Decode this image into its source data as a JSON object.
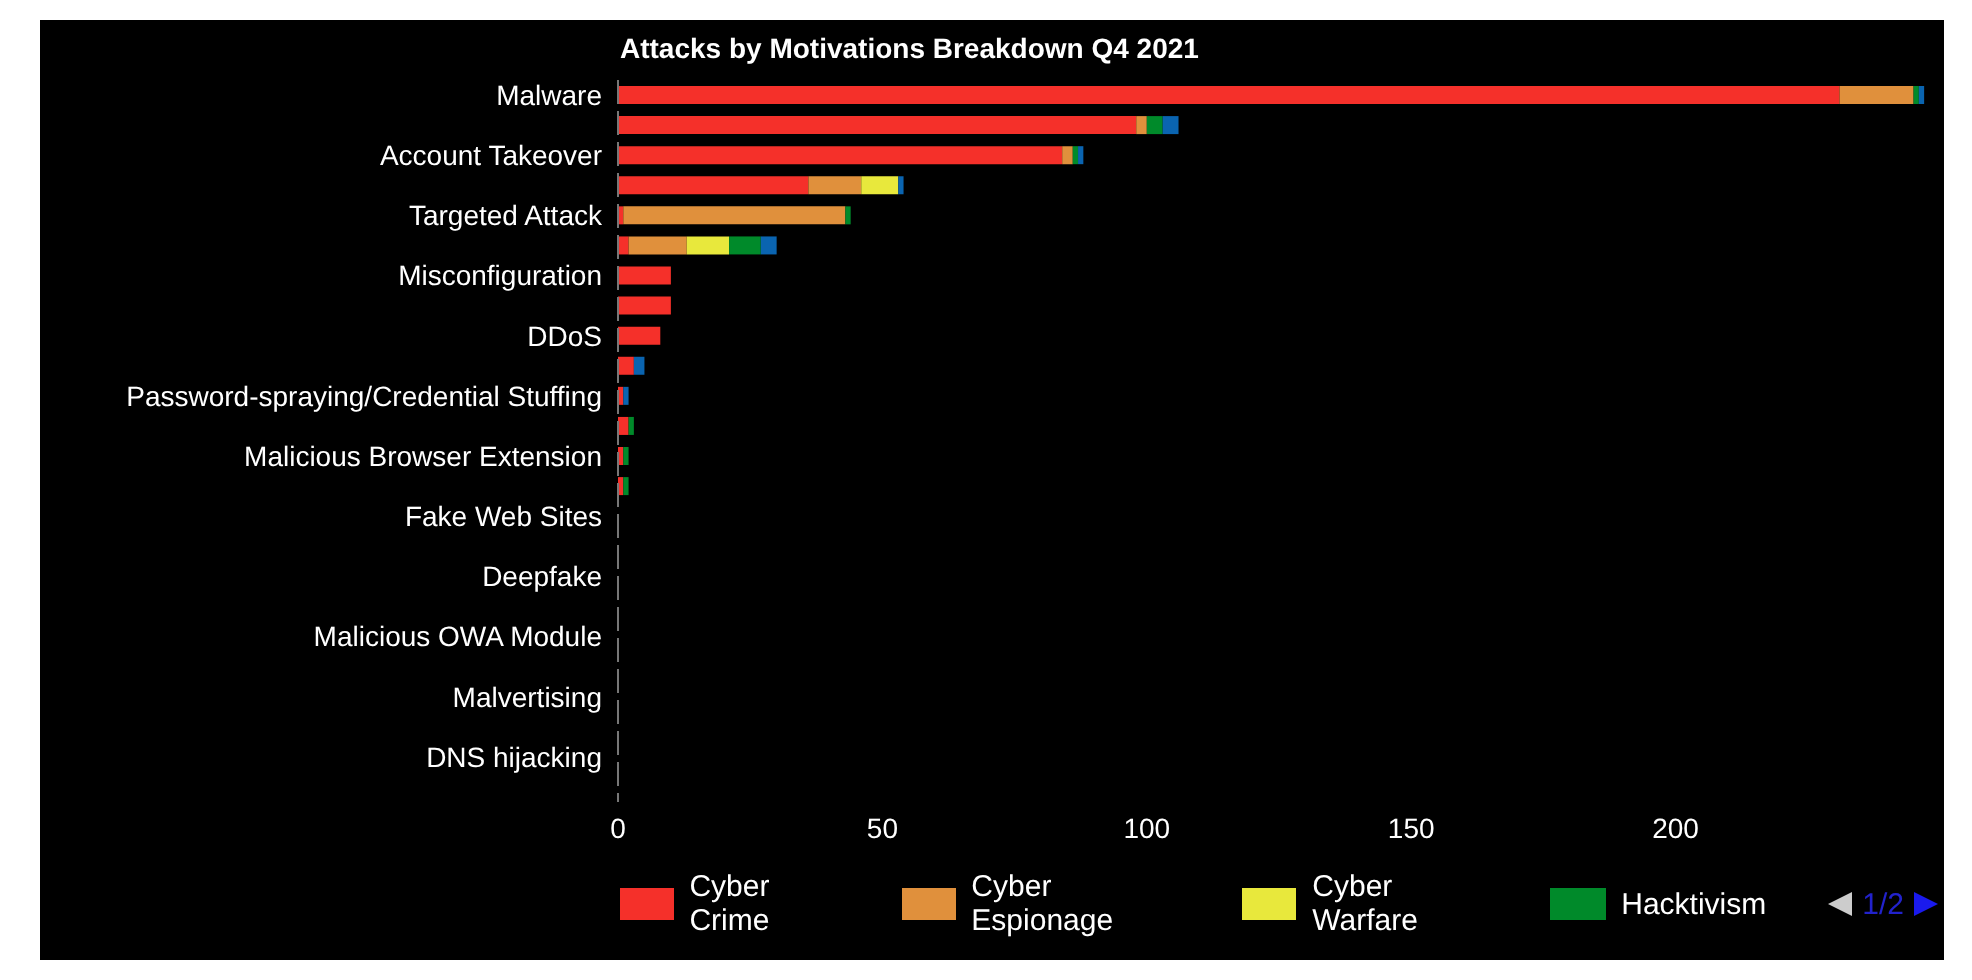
{
  "chart_data": {
    "type": "bar",
    "orientation": "horizontal",
    "stacked": true,
    "title": "Attacks by Motivations Breakdown Q4 2021",
    "categories": [
      "Malware",
      null,
      "Account Takeover",
      null,
      "Targeted Attack",
      null,
      "Misconfiguration",
      null,
      "DDoS",
      null,
      "Password-spraying/Credential Stuffing",
      null,
      "Malicious Browser Extension",
      null,
      "Fake Web Sites",
      null,
      "Deepfake",
      null,
      "Malicious OWA Module",
      null,
      "Malvertising",
      null,
      "DNS hijacking",
      null
    ],
    "series": [
      {
        "name": "Cyber Crime",
        "color": "#f5302a",
        "values": [
          231,
          98,
          84,
          36,
          1,
          2,
          10,
          10,
          8,
          3,
          1,
          2,
          1,
          1,
          0,
          0,
          0,
          0,
          0,
          0,
          0,
          0,
          0,
          0
        ]
      },
      {
        "name": "Cyber Espionage",
        "color": "#e0903c",
        "values": [
          14,
          2,
          2,
          10,
          42,
          11,
          0,
          0,
          0,
          0,
          0,
          0,
          0,
          0,
          0,
          0,
          0,
          0,
          0,
          0,
          0,
          0,
          0,
          0
        ]
      },
      {
        "name": "Cyber Warfare",
        "color": "#e8e83c",
        "values": [
          0,
          0,
          0,
          7,
          0,
          8,
          0,
          0,
          0,
          0,
          0,
          0,
          0,
          0,
          0,
          0,
          0,
          0,
          0,
          0,
          0,
          0,
          0,
          0
        ]
      },
      {
        "name": "Hacktivism",
        "color": "#008a2a",
        "values": [
          1,
          3,
          1,
          0,
          1,
          6,
          0,
          0,
          0,
          0,
          0,
          1,
          1,
          1,
          0,
          0,
          0,
          0,
          0,
          0,
          0,
          0,
          0,
          0
        ]
      },
      {
        "color": "#0a64b0",
        "values": [
          1,
          3,
          1,
          1,
          0,
          3,
          0,
          0,
          0,
          2,
          1,
          0,
          0,
          0,
          0,
          0,
          0,
          0,
          0,
          0,
          0,
          0,
          0,
          0
        ]
      }
    ],
    "xlim": [
      0,
      250
    ],
    "xticks": [
      0,
      50,
      100,
      150,
      200
    ],
    "grid": false,
    "legend": "bottom",
    "annotations": [
      "1/2"
    ]
  }
}
